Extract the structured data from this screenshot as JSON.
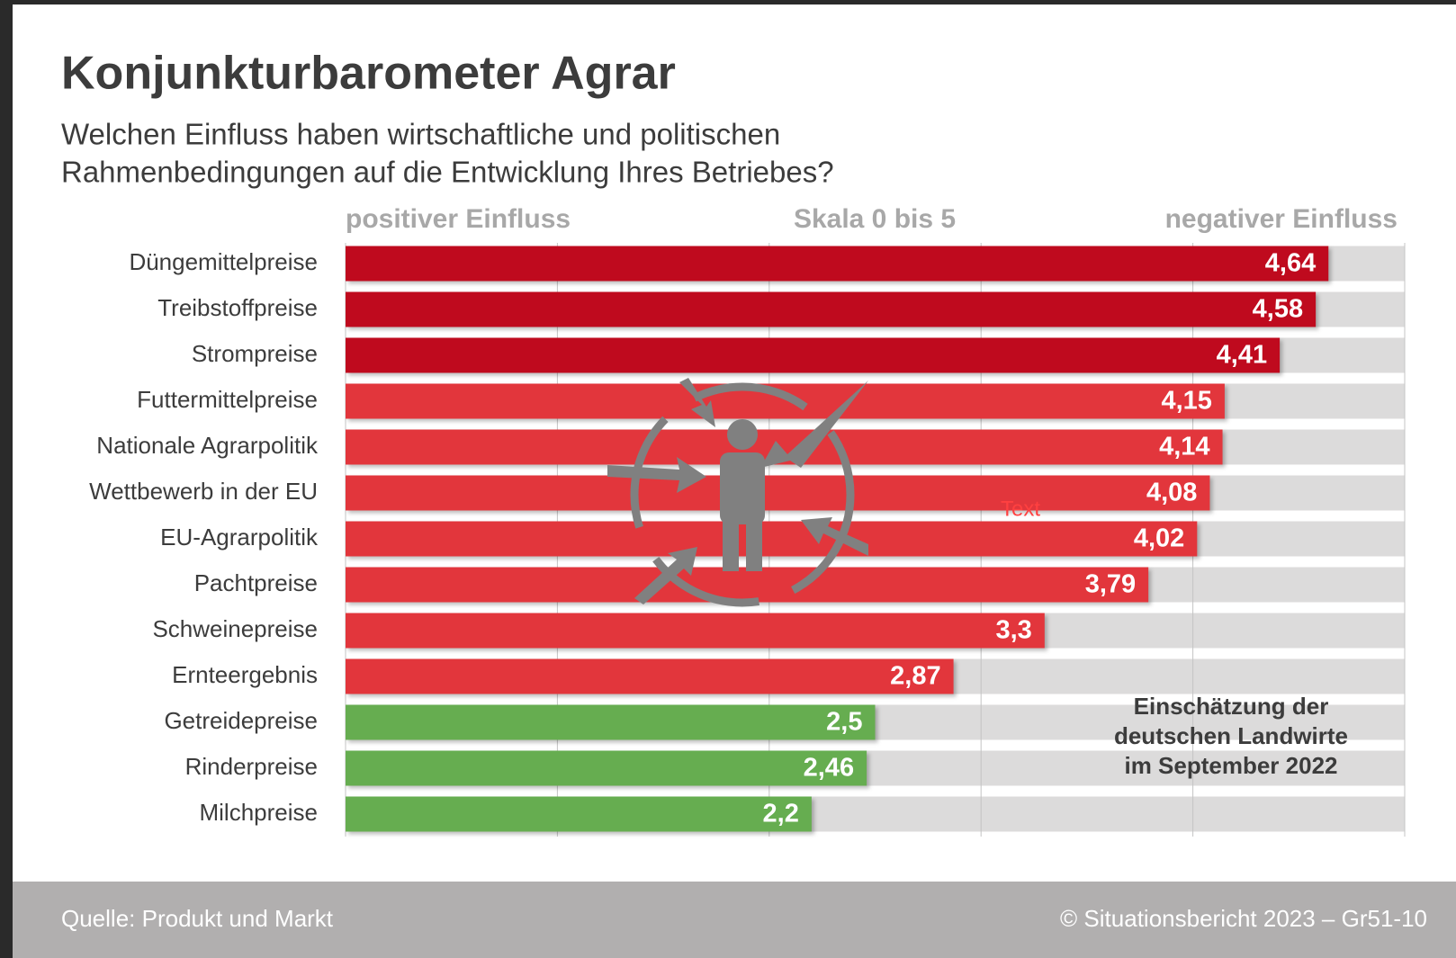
{
  "chart_data": {
    "type": "hbar",
    "title": "Konjunkturbarometer Agrar",
    "subtitle": [
      "Welchen Einfluss haben wirtschaftliche und politischen",
      "Rahmenbedingungen auf die Entwicklung Ihres Betriebes?"
    ],
    "scale_labels": [
      "positiver Einfluss",
      "Skala 0 bis 5",
      "negativer Einfluss"
    ],
    "categories": [
      "Düngemittelpreise",
      "Treibstoffpreise",
      "Strompreise",
      "Futtermittelpreise",
      "Nationale Agrarpolitik",
      "Wettbewerb in der EU",
      "EU-Agrarpolitik",
      "Pachtpreise",
      "Schweinepreise",
      "Ernteergebnis",
      "Getreidepreise",
      "Rinderpreise",
      "Milchpreise"
    ],
    "values": [
      4.64,
      4.58,
      4.41,
      4.15,
      4.14,
      4.08,
      4.02,
      3.79,
      3.3,
      2.87,
      2.5,
      2.46,
      2.2
    ],
    "value_labels": [
      "4,64",
      "4,58",
      "4,41",
      "4,15",
      "4,14",
      "4,08",
      "4,02",
      "3,79",
      "3,3",
      "2,87",
      "2,5",
      "2,46",
      "2,2"
    ],
    "colors": [
      "#bf0a1e",
      "#bf0a1e",
      "#bf0a1e",
      "#e2363c",
      "#e2363c",
      "#e2363c",
      "#e2363c",
      "#e2363c",
      "#e2363c",
      "#e2363c",
      "#66ad50",
      "#66ad50",
      "#66ad50"
    ],
    "xlim": [
      0,
      5
    ],
    "xticks": [
      0,
      1,
      2,
      3,
      4,
      5
    ],
    "grid": true,
    "annotation": [
      "Einschätzung der",
      "deutschen Landwirte",
      "im September 2022"
    ],
    "stray_labels": [
      "Text",
      "Text"
    ],
    "source": "Quelle: Produkt und Markt",
    "copyright": "© Situationsbericht 2023 – Gr51-10"
  }
}
